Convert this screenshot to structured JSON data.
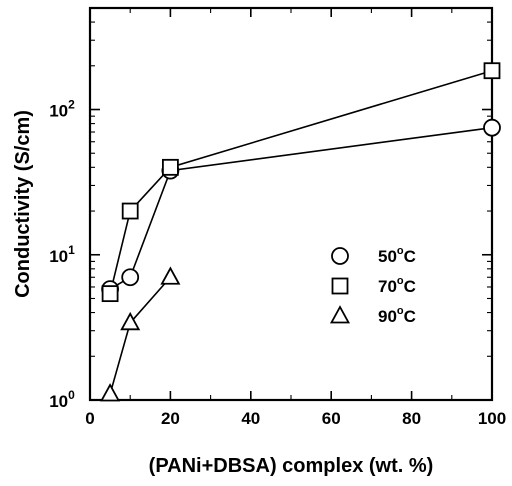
{
  "chart_data": {
    "type": "scatter",
    "title": "",
    "xlabel": "(PANi+DBSA) complex  (wt. %)",
    "ylabel": "Conductivity (S/cm)",
    "xlim": [
      0,
      100
    ],
    "ylim": [
      1,
      500
    ],
    "yscale": "log",
    "x_ticks": [
      0,
      20,
      40,
      60,
      80,
      100
    ],
    "y_ticks": [
      {
        "value": 1,
        "base": "10",
        "exp": "0"
      },
      {
        "value": 10,
        "base": "10",
        "exp": "1"
      },
      {
        "value": 100,
        "base": "10",
        "exp": "2"
      }
    ],
    "grid": false,
    "legend_position": "middle-right",
    "series": [
      {
        "name": "50°C",
        "name_parts": {
          "num": "50",
          "deg": "o",
          "unit": "C"
        },
        "marker": "circle",
        "points": [
          {
            "x": 5,
            "y": 5.8
          },
          {
            "x": 10,
            "y": 7.0
          },
          {
            "x": 20,
            "y": 38
          },
          {
            "x": 100,
            "y": 75
          }
        ]
      },
      {
        "name": "70°C",
        "name_parts": {
          "num": "70",
          "deg": "o",
          "unit": "C"
        },
        "marker": "square",
        "points": [
          {
            "x": 5,
            "y": 5.4
          },
          {
            "x": 10,
            "y": 20
          },
          {
            "x": 20,
            "y": 40
          },
          {
            "x": 100,
            "y": 185
          }
        ]
      },
      {
        "name": "90°C",
        "name_parts": {
          "num": "90",
          "deg": "o",
          "unit": "C"
        },
        "marker": "triangle",
        "points": [
          {
            "x": 5,
            "y": 1.1
          },
          {
            "x": 10,
            "y": 3.4
          },
          {
            "x": 20,
            "y": 7.0
          }
        ]
      }
    ]
  }
}
